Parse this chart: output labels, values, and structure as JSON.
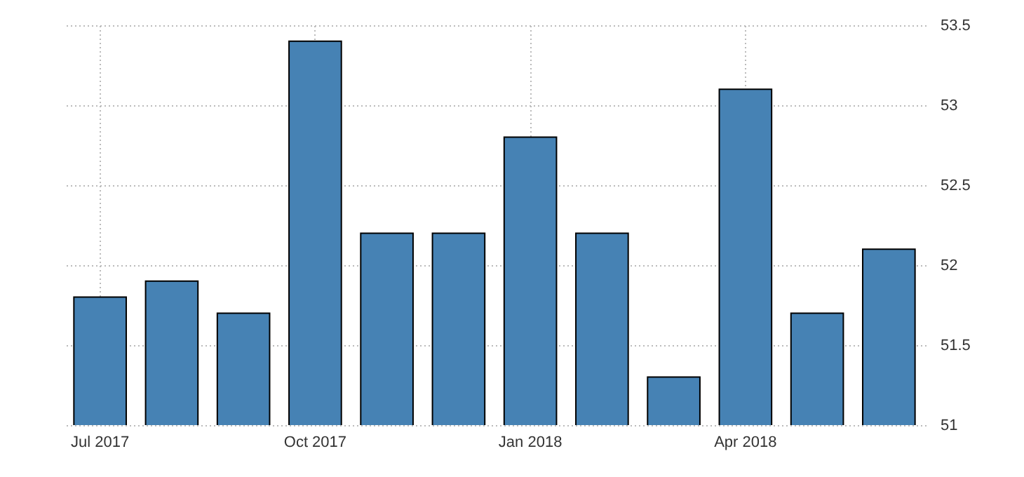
{
  "chart_data": {
    "type": "bar",
    "categories": [
      "Jul 2017",
      null,
      null,
      "Oct 2017",
      null,
      null,
      "Jan 2018",
      null,
      null,
      "Apr 2018",
      null,
      null
    ],
    "values": [
      51.8,
      51.9,
      51.7,
      53.4,
      52.2,
      52.2,
      52.8,
      52.2,
      51.3,
      53.1,
      51.7,
      52.1
    ],
    "color": "#4682b4",
    "ylim": [
      51,
      53.5
    ],
    "yticks": [
      51,
      51.5,
      52,
      52.5,
      53,
      53.5
    ],
    "grid": true
  }
}
